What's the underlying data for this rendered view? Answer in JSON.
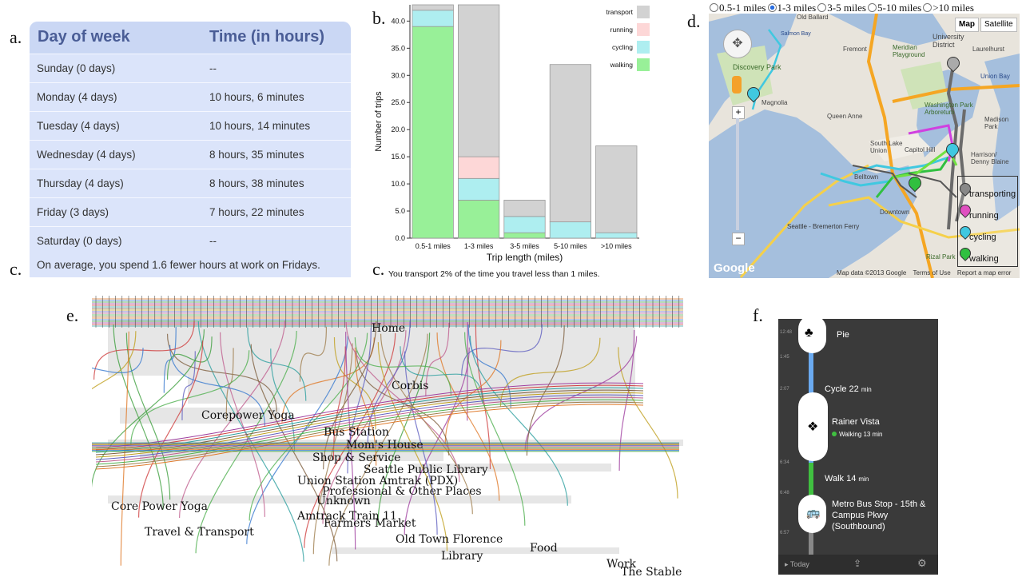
{
  "panel_labels": {
    "a": "a.",
    "b": "b.",
    "c1": "c.",
    "c2": "c.",
    "d": "d.",
    "e": "e.",
    "f": "f."
  },
  "table": {
    "headers": [
      "Day of week",
      "Time (in hours)"
    ],
    "rows": [
      [
        "Sunday (0 days)",
        "--"
      ],
      [
        "Monday (4 days)",
        "10 hours, 6 minutes"
      ],
      [
        "Tuesday (4 days)",
        "10 hours, 14 minutes"
      ],
      [
        "Wednesday (4 days)",
        "8 hours, 35 minutes"
      ],
      [
        "Thursday (4 days)",
        "8 hours, 38 minutes"
      ],
      [
        "Friday (3 days)",
        "7 hours, 22 minutes"
      ],
      [
        "Saturday (0 days)",
        "--"
      ]
    ],
    "note": "On average, you spend 1.6 fewer hours at work on Fridays."
  },
  "chart_data": {
    "type": "bar",
    "stacked": true,
    "categories": [
      "0.5-1 miles",
      "1-3 miles",
      "3-5 miles",
      "5-10 miles",
      ">10 miles"
    ],
    "series": [
      {
        "name": "walking",
        "color": "#98f098",
        "values": [
          39,
          7,
          1,
          0,
          0
        ]
      },
      {
        "name": "cycling",
        "color": "#aeeef0",
        "values": [
          3,
          4,
          3,
          3,
          1
        ]
      },
      {
        "name": "running",
        "color": "#fdd7d7",
        "values": [
          0,
          4,
          0,
          0,
          0
        ]
      },
      {
        "name": "transport",
        "color": "#d2d2d2",
        "values": [
          1,
          28,
          3,
          29,
          16
        ]
      }
    ],
    "legend_order": [
      "transport",
      "running",
      "cycling",
      "walking"
    ],
    "xlabel": "Trip length (miles)",
    "ylabel": "Number of trips",
    "yticks": [
      "0.0",
      "5.0",
      "10.0",
      "15.0",
      "20.0",
      "25.0",
      "30.0",
      "35.0",
      "40.0"
    ],
    "ylim": [
      0,
      43
    ],
    "caption": "You transport 2% of the time you travel less than 1 miles.",
    "legend_position": "top-right"
  },
  "map": {
    "radio_options": [
      "0.5-1 miles",
      "1-3 miles",
      "3-5 miles",
      "5-10 miles",
      ">10 miles"
    ],
    "selected": "1-3 miles",
    "buttons": [
      "Map",
      "Satellite"
    ],
    "legend": [
      {
        "label": "transporting",
        "color": "#888888"
      },
      {
        "label": "running",
        "color": "#e050c0"
      },
      {
        "label": "cycling",
        "color": "#40c8e0"
      },
      {
        "label": "walking",
        "color": "#30c040"
      }
    ],
    "footer": [
      "Map data ©2013 Google",
      "Terms of Use",
      "Report a map error"
    ],
    "brand": "Google",
    "places": [
      "Discovery Park",
      "Magnolia",
      "Queen Anne",
      "University District",
      "Fremont",
      "Meridian Playground",
      "Laurelhurst",
      "Washington Park Arboretum",
      "Madison Park",
      "Capitol Hill",
      "Downtown",
      "Seattle - Bremerton Ferry",
      "Harrison/ Denny Blaine",
      "Rizal Park",
      "Union Bay",
      "Salmon Bay",
      "Old Ballard",
      "South Lake Union",
      "Belltown"
    ]
  },
  "storyline": {
    "locations": [
      "Home",
      "Corbis",
      "Corepower Yoga",
      "Bus Station",
      "Mom's House",
      "Shop & Service",
      "Seattle Public Library",
      "Union Station Amtrak (PDX)",
      "Professional & Other Places",
      "Unknown",
      "Core Power Yoga",
      "Amtrack Train 11",
      "Farmers Market",
      "Travel & Transport",
      "Old Town Florence",
      "Food",
      "Library",
      "Work",
      "The Stable"
    ]
  },
  "phone": {
    "times": [
      "12:48",
      "1:45",
      "2:07",
      "6:34",
      "6:48",
      "6:57"
    ],
    "items": [
      {
        "title": "Pie"
      },
      {
        "title": "Cycle 22",
        "unit": "min"
      },
      {
        "title": "Rainer Vista",
        "sub": "Walking 13 min"
      },
      {
        "title": "Walk 14",
        "unit": "min"
      },
      {
        "title": "Metro Bus Stop - 15th & Campus Pkwy (Southbound)"
      }
    ],
    "footer": "Today"
  }
}
